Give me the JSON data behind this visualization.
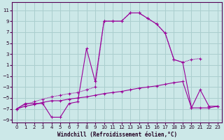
{
  "xlabel": "Windchill (Refroidissement éolien,°C)",
  "bg_color": "#cce8e8",
  "grid_color": "#aacece",
  "line_color": "#990099",
  "xlim": [
    -0.5,
    23.5
  ],
  "ylim": [
    -9.5,
    12
  ],
  "xticks": [
    0,
    1,
    2,
    3,
    4,
    5,
    6,
    7,
    8,
    9,
    10,
    11,
    12,
    13,
    14,
    15,
    16,
    17,
    18,
    19,
    20,
    21,
    22,
    23
  ],
  "yticks": [
    -9,
    -7,
    -5,
    -3,
    -1,
    1,
    3,
    5,
    7,
    9,
    11
  ],
  "line1_x": [
    0,
    1,
    2,
    3,
    4,
    5,
    6,
    7,
    8,
    9,
    10,
    11,
    12,
    13,
    14,
    15,
    16,
    17,
    18,
    19,
    20,
    21
  ],
  "line1_y": [
    -7,
    -6.2,
    -5.7,
    -5.2,
    -4.8,
    -4.5,
    -4.2,
    -4.0,
    -3.5,
    -3.0,
    9,
    9,
    9,
    10.5,
    10.5,
    9.5,
    8.5,
    6.8,
    2.0,
    1.5,
    2.0,
    2.2
  ],
  "line2_x": [
    0,
    1,
    2,
    3,
    4,
    5,
    6,
    7,
    8,
    9,
    10,
    11,
    12,
    13,
    14,
    15,
    16,
    17,
    18,
    19,
    20,
    21,
    22,
    23
  ],
  "line2_y": [
    -7,
    -6,
    -6,
    -6,
    -8.5,
    -8.5,
    -6,
    -5.7,
    4.0,
    -2.0,
    9,
    9,
    9,
    10.5,
    10.5,
    9.5,
    8.5,
    6.8,
    2.0,
    1.5,
    -6.8,
    -6.8,
    -6.8,
    -6.5
  ],
  "line3_x": [
    0,
    1,
    2,
    3,
    4,
    5,
    6,
    7,
    8,
    9,
    10,
    11,
    12,
    13,
    14,
    15,
    16,
    17,
    18,
    19,
    20,
    21,
    22,
    23
  ],
  "line3_y": [
    -7,
    -6.5,
    -6.2,
    -5.8,
    -5.5,
    -5.5,
    -5.2,
    -5.0,
    -4.8,
    -4.5,
    -4.2,
    -4.0,
    -3.8,
    -3.5,
    -3.2,
    -3.0,
    -2.8,
    -2.5,
    -2.2,
    -2.0,
    -6.8,
    -3.5,
    -6.5,
    -6.5
  ]
}
